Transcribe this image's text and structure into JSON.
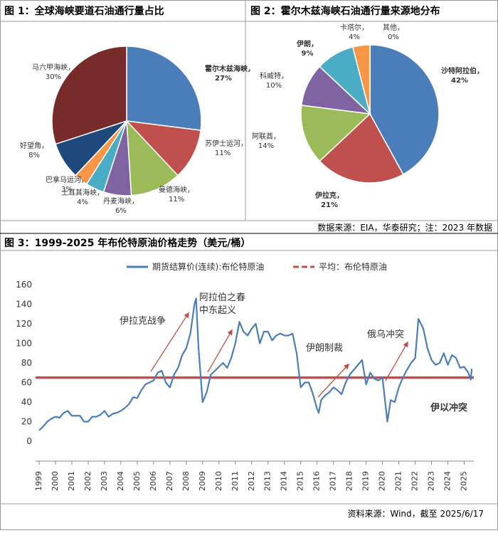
{
  "chart_data": [
    {
      "type": "pie",
      "title": "图 1：全球海峡要道石油通行量占比",
      "categories": [
        "霍尔木兹海峡，",
        "苏伊士运河，",
        "曼德海峡，",
        "丹麦海峡，",
        "土耳其海峡，",
        "巴拿马运河，",
        "好望角，",
        "马六甲海峡，"
      ],
      "values": [
        27,
        11,
        11,
        6,
        4,
        3,
        8,
        30
      ],
      "value_labels": [
        "27%",
        "11%",
        "11%",
        "6%",
        "4%",
        "3%",
        "8%",
        "30%"
      ],
      "colors": [
        "#4a7ebb",
        "#c0504d",
        "#9bbb59",
        "#8064a2",
        "#4bacc6",
        "#f79646",
        "#1f497d",
        "#772c2a"
      ],
      "label_colors": [
        "#e00000",
        "#333333",
        "#333333",
        "#333333",
        "#333333",
        "#333333",
        "#333333",
        "#333333"
      ]
    },
    {
      "type": "pie",
      "title": "图 2：霍尔木兹海峡石油通行量来源地分布",
      "categories": [
        "沙特阿拉伯，",
        "伊拉克，",
        "阿联酋，",
        "科威特，",
        "伊朗，",
        "卡塔尔，",
        "其他，"
      ],
      "values": [
        42,
        21,
        14,
        10,
        9,
        4,
        0
      ],
      "value_labels": [
        "42%",
        "21%",
        "14%",
        "10%",
        "9%",
        "4%",
        "0%"
      ],
      "colors": [
        "#4a7ebb",
        "#c0504d",
        "#9bbb59",
        "#8064a2",
        "#4bacc6",
        "#f79646",
        "#7f7f7f"
      ],
      "label_colors": [
        "#e00000",
        "#e00000",
        "#333333",
        "#333333",
        "#e00000",
        "#333333",
        "#333333"
      ],
      "source": "数据来源：EIA，华泰研究；注：2023 年数据"
    },
    {
      "type": "line",
      "title": "图 3：1999-2025 年布伦特原油价格走势（美元/桶）",
      "x": [
        1999.0,
        1999.25,
        1999.5,
        1999.75,
        2000.0,
        2000.25,
        2000.5,
        2000.75,
        2001.0,
        2001.25,
        2001.5,
        2001.75,
        2002.0,
        2002.25,
        2002.5,
        2002.75,
        2003.0,
        2003.25,
        2003.5,
        2003.75,
        2004.0,
        2004.25,
        2004.5,
        2004.75,
        2005.0,
        2005.25,
        2005.5,
        2005.75,
        2006.0,
        2006.25,
        2006.5,
        2006.75,
        2007.0,
        2007.25,
        2007.5,
        2007.75,
        2008.0,
        2008.25,
        2008.5,
        2008.6,
        2008.75,
        2009.0,
        2009.25,
        2009.5,
        2009.75,
        2010.0,
        2010.25,
        2010.5,
        2010.75,
        2011.0,
        2011.25,
        2011.5,
        2011.75,
        2012.0,
        2012.25,
        2012.5,
        2012.75,
        2013.0,
        2013.25,
        2013.5,
        2013.75,
        2014.0,
        2014.25,
        2014.5,
        2014.75,
        2015.0,
        2015.25,
        2015.5,
        2015.75,
        2016.0,
        2016.1,
        2016.25,
        2016.5,
        2016.75,
        2017.0,
        2017.25,
        2017.5,
        2017.75,
        2018.0,
        2018.25,
        2018.5,
        2018.75,
        2019.0,
        2019.25,
        2019.5,
        2019.75,
        2020.0,
        2020.3,
        2020.5,
        2020.75,
        2021.0,
        2021.25,
        2021.5,
        2021.75,
        2022.0,
        2022.2,
        2022.5,
        2022.75,
        2023.0,
        2023.25,
        2023.5,
        2023.75,
        2024.0,
        2024.25,
        2024.5,
        2024.75,
        2025.0,
        2025.25,
        2025.4,
        2025.46
      ],
      "series": [
        {
          "name": "期货结算价(连续):布伦特原油",
          "color": "#4a7ebb",
          "values": [
            11,
            15,
            20,
            23,
            25,
            24,
            29,
            31,
            26,
            26,
            26,
            20,
            20,
            25,
            25,
            27,
            31,
            25,
            28,
            29,
            31,
            34,
            38,
            45,
            44,
            52,
            58,
            60,
            62,
            70,
            72,
            60,
            55,
            68,
            75,
            88,
            95,
            110,
            140,
            146,
            95,
            40,
            50,
            68,
            72,
            76,
            80,
            75,
            85,
            100,
            122,
            112,
            108,
            115,
            120,
            100,
            112,
            112,
            103,
            108,
            110,
            108,
            108,
            110,
            90,
            55,
            60,
            60,
            48,
            33,
            29,
            42,
            47,
            50,
            55,
            52,
            48,
            60,
            68,
            73,
            78,
            83,
            58,
            70,
            64,
            62,
            65,
            20,
            42,
            40,
            55,
            65,
            73,
            80,
            85,
            125,
            115,
            95,
            83,
            78,
            80,
            90,
            78,
            88,
            85,
            75,
            76,
            70,
            63,
            74
          ]
        }
      ],
      "reference_lines": [
        {
          "name": "平均：布伦特原油",
          "value": 65,
          "color": "#c0504d"
        }
      ],
      "xlim": [
        1999,
        2025.5
      ],
      "xticks": [
        1999,
        2000,
        2001,
        2002,
        2003,
        2004,
        2005,
        2006,
        2007,
        2008,
        2009,
        2010,
        2011,
        2012,
        2013,
        2014,
        2015,
        2016,
        2017,
        2018,
        2019,
        2020,
        2021,
        2022,
        2023,
        2024,
        2025
      ],
      "ylim": [
        0,
        160
      ],
      "yticks": [
        0,
        20,
        40,
        60,
        80,
        100,
        120,
        140,
        160
      ],
      "annotations": [
        "伊拉克战争",
        "阿拉伯之春",
        "中东起义",
        "伊朗制裁",
        "俄乌冲突",
        "伊以冲突"
      ],
      "source": "资料来源：Wind，截至  2025/6/17"
    }
  ]
}
